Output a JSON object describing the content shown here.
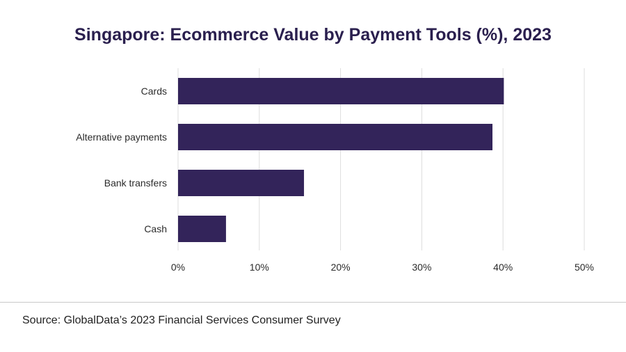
{
  "chart_data": {
    "type": "bar",
    "orientation": "horizontal",
    "title": "Singapore: Ecommerce Value by Payment Tools (%), 2023",
    "categories": [
      "Cards",
      "Alternative payments",
      "Bank transfers",
      "Cash"
    ],
    "values": [
      40.1,
      38.7,
      15.5,
      5.9
    ],
    "xlim": [
      0,
      50
    ],
    "xticks": [
      "0%",
      "10%",
      "20%",
      "30%",
      "40%",
      "50%"
    ],
    "grid": true,
    "bar_color": "#33245a"
  },
  "source": "Source: GlobalData’s 2023 Financial Services Consumer Survey"
}
